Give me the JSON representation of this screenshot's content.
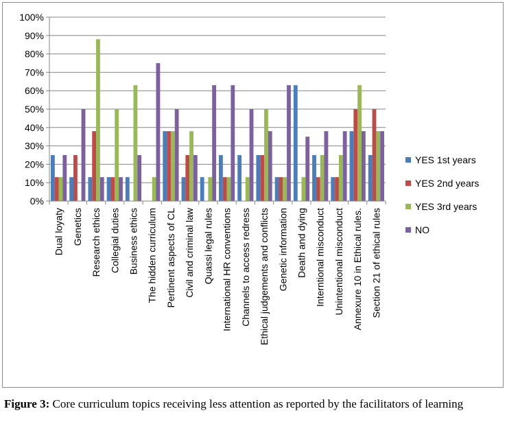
{
  "chart_data": {
    "type": "bar",
    "title": "",
    "xlabel": "",
    "ylabel": "",
    "ylim": [
      0,
      100
    ],
    "yticks": [
      "0%",
      "10%",
      "20%",
      "30%",
      "40%",
      "50%",
      "60%",
      "70%",
      "80%",
      "90%",
      "100%"
    ],
    "grid": true,
    "legend_position": "right",
    "categories": [
      "Dual loyaty",
      "Genetics",
      "Research ethics",
      "Collegial duties",
      "Business ethics",
      "The hidden curriculum",
      "Pertinent aspects of CL",
      "Civil and criminal law",
      "Quassi legal rules",
      "International HR conventions",
      "Channels to access redress",
      "Ethical judgements and conflicts",
      "Genetic information",
      "Death and dying",
      "Interntional misconduct",
      "Unintentional misconduct",
      "Annexure 10 in Ethical rules.",
      "Section 21 of ethical rules"
    ],
    "series": [
      {
        "name": "YES 1st years",
        "color": "#4a7ebb",
        "values": [
          25,
          13,
          13,
          13,
          13,
          0,
          38,
          13,
          13,
          25,
          25,
          25,
          13,
          63,
          25,
          13,
          38,
          25
        ]
      },
      {
        "name": "YES 2nd years",
        "color": "#be4b48",
        "values": [
          13,
          25,
          38,
          13,
          0,
          0,
          38,
          25,
          0,
          13,
          0,
          25,
          13,
          0,
          13,
          13,
          50,
          50
        ]
      },
      {
        "name": "YES 3rd years",
        "color": "#98b954",
        "values": [
          13,
          0,
          88,
          50,
          63,
          13,
          38,
          38,
          13,
          13,
          13,
          50,
          13,
          13,
          25,
          25,
          63,
          38
        ]
      },
      {
        "name": "NO",
        "color": "#7d60a0",
        "values": [
          25,
          50,
          13,
          13,
          25,
          75,
          50,
          25,
          63,
          63,
          50,
          38,
          63,
          35,
          38,
          38,
          38,
          38
        ]
      }
    ]
  },
  "caption": {
    "label": "Figure 3:",
    "text": " Core curriculum topics receiving less attention as reported by the facilitators of learning"
  }
}
